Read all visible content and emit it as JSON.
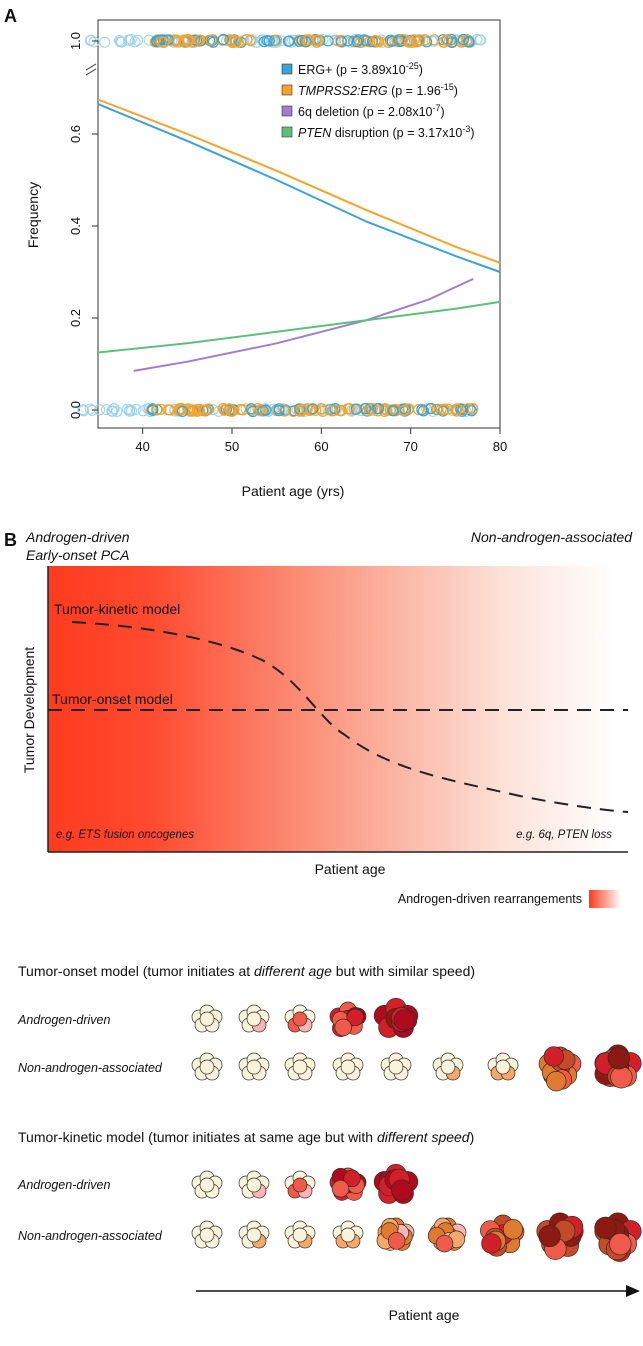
{
  "panel_a": {
    "letter": "A",
    "chart_data": {
      "type": "line",
      "xlabel": "Patient age (yrs)",
      "ylabel": "Frequency",
      "xlim": [
        35,
        80
      ],
      "ylim": [
        0,
        1
      ],
      "xticks": [
        "40",
        "50",
        "60",
        "70",
        "80"
      ],
      "yticks": [
        "0.0",
        "0.2",
        "0.4",
        "0.6",
        "1.0"
      ],
      "y_axis_break": "between 0.7 and 1.0",
      "grid": false,
      "legend_position": "top-right",
      "series": [
        {
          "name": "ERG+",
          "p_prefix": "(p = 3.89x10",
          "p_exp": "-25",
          "color": "#3aa3d8",
          "x": [
            35,
            45,
            55,
            65,
            75,
            80
          ],
          "y": [
            0.665,
            0.585,
            0.5,
            0.41,
            0.335,
            0.3
          ]
        },
        {
          "name": "TMPRSS2:ERG",
          "p_prefix": "(p = 1.96",
          "p_exp": "-15",
          "color": "#f7a32b",
          "italic": true,
          "x": [
            35,
            45,
            55,
            65,
            75,
            80
          ],
          "y": [
            0.675,
            0.6,
            0.52,
            0.435,
            0.355,
            0.32
          ]
        },
        {
          "name": "6q deletion",
          "p_prefix": "(p = 2.08x10",
          "p_exp": "-7",
          "color": "#a07dd0",
          "x": [
            39,
            45,
            55,
            65,
            72,
            77
          ],
          "y": [
            0.085,
            0.105,
            0.145,
            0.195,
            0.24,
            0.285
          ]
        },
        {
          "name": "PTEN",
          "name_suffix": " disruption",
          "p_prefix": "(p = 3.17x10",
          "p_exp": "-3",
          "color": "#5cc07c",
          "italic": true,
          "x": [
            35,
            45,
            55,
            65,
            75,
            80
          ],
          "y": [
            0.125,
            0.145,
            0.17,
            0.195,
            0.22,
            0.235
          ]
        }
      ],
      "rug_points": {
        "x_range_light": [
          33,
          79
        ],
        "x_range_dense": [
          41,
          77
        ],
        "at_y": [
          0.0,
          1.0
        ],
        "colors": [
          "#3aa3d8",
          "#f7a32b"
        ]
      }
    }
  },
  "panel_b": {
    "letter": "B",
    "left_title_1": "Androgen-driven",
    "left_title_2": "Early-onset PCA",
    "right_title": "Non-androgen-associated",
    "ylabel": "Tumor Development",
    "xlabel": "Patient age",
    "kinetic_label": "Tumor-kinetic model",
    "onset_label": "Tumor-onset model",
    "left_example": "e.g. ETS fusion oncogenes",
    "right_example": "e.g. 6q, PTEN loss",
    "gradient_legend": "Androgen-driven rearrangements",
    "gradient_color": "#ff3b1f"
  },
  "panel_c": {
    "onset_heading_1": "Tumor-onset model (tumor initiates at ",
    "onset_heading_em": "different age",
    "onset_heading_2": " but with similar speed)",
    "kinetic_heading_1": "Tumor-kinetic model (tumor initiates at same age but with ",
    "kinetic_heading_em": "different speed",
    "kinetic_heading_2": ")",
    "row_androgen": "Androgen-driven",
    "row_non": "Non-androgen-associated",
    "arrow_label": "Patient age"
  }
}
